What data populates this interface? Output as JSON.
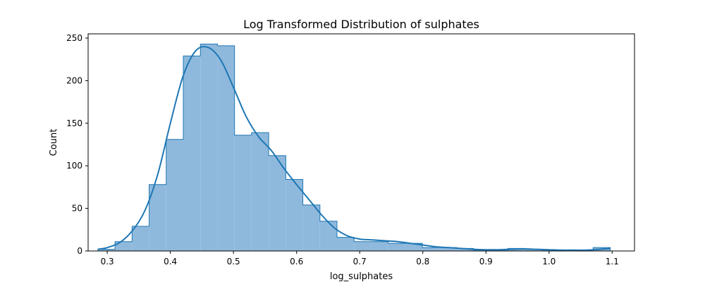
{
  "chart_data": {
    "type": "histogram",
    "title": "Log Transformed Distribution of sulphates",
    "xlabel": "log_sulphates",
    "ylabel": "Count",
    "xlim": [
      0.2697,
      1.1354
    ],
    "ylim": [
      0,
      255
    ],
    "xticks": [
      0.3,
      0.4,
      0.5,
      0.6,
      0.7,
      0.8,
      0.9,
      1.0,
      1.1
    ],
    "xtick_labels": [
      "0.3",
      "0.4",
      "0.5",
      "0.6",
      "0.7",
      "0.8",
      "0.9",
      "1.0",
      "1.1"
    ],
    "yticks": [
      0,
      50,
      100,
      150,
      200,
      250
    ],
    "ytick_labels": [
      "0",
      "50",
      "100",
      "150",
      "200",
      "250"
    ],
    "grid": false,
    "bar_color": "#8fb9dc",
    "edge_color": "#1f77b4",
    "kde_color": "#1f77b4",
    "bin_edges": [
      0.2852,
      0.3123,
      0.3393,
      0.3664,
      0.3934,
      0.4205,
      0.4476,
      0.4746,
      0.5017,
      0.5287,
      0.5558,
      0.5829,
      0.6099,
      0.637,
      0.664,
      0.6911,
      0.7182,
      0.7452,
      0.7723,
      0.7993,
      0.8264,
      0.8535,
      0.8805,
      0.9076,
      0.9346,
      0.9617,
      0.9888,
      1.0158,
      1.0429,
      1.0699,
      1.097
    ],
    "counts": [
      2,
      11,
      29,
      78,
      131,
      229,
      243,
      241,
      136,
      139,
      112,
      84,
      54,
      35,
      16,
      11,
      11,
      9,
      9,
      4,
      4,
      3,
      1,
      1,
      3,
      2,
      1,
      1,
      1,
      4
    ],
    "kde": {
      "x": [
        0.285,
        0.3,
        0.32,
        0.34,
        0.36,
        0.38,
        0.4,
        0.42,
        0.44,
        0.46,
        0.48,
        0.5,
        0.52,
        0.54,
        0.56,
        0.58,
        0.6,
        0.62,
        0.64,
        0.66,
        0.68,
        0.7,
        0.72,
        0.74,
        0.76,
        0.78,
        0.8,
        0.82,
        0.84,
        0.86,
        0.88,
        0.9,
        0.92,
        0.94,
        0.96,
        0.98,
        1.0,
        1.02,
        1.04,
        1.06,
        1.08,
        1.097
      ],
      "y": [
        2,
        4,
        10,
        24,
        48,
        90,
        150,
        205,
        235,
        239,
        224,
        192,
        158,
        134,
        118,
        97,
        78,
        60,
        42,
        27,
        18,
        14,
        13,
        12,
        11,
        9,
        7,
        5,
        4,
        3,
        2,
        1.5,
        1.5,
        2,
        2.5,
        2,
        1.5,
        1,
        1,
        1,
        2,
        3
      ]
    }
  }
}
